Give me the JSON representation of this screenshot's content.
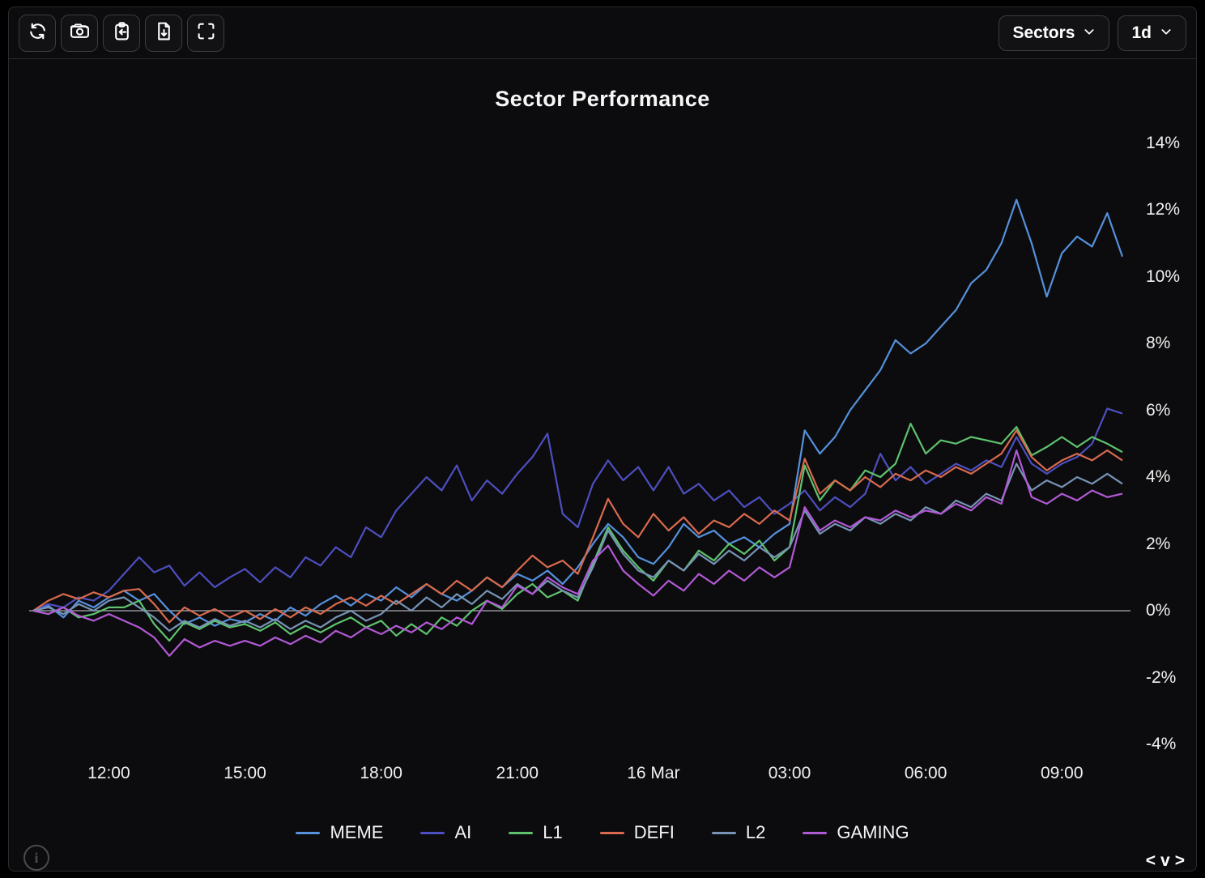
{
  "toolbar": {
    "icons": [
      {
        "name": "refresh-icon"
      },
      {
        "name": "camera-icon"
      },
      {
        "name": "clipboard-import-icon"
      },
      {
        "name": "file-download-icon"
      },
      {
        "name": "fullscreen-icon"
      }
    ],
    "sectors_label": "Sectors",
    "timeframe_label": "1d"
  },
  "footer": {
    "info_icon": "i",
    "nav_left": "<",
    "nav_down": "v",
    "nav_right": ">"
  },
  "chart_data": {
    "type": "line",
    "title": "Sector Performance",
    "xlabel": "",
    "ylabel": "",
    "grid": "zero-line-only",
    "legend_position": "bottom",
    "zero_line_color": "#8f9399",
    "ylim": [
      -4.2,
      14.7
    ],
    "y_ticks": [
      {
        "value": 14,
        "label": "14%"
      },
      {
        "value": 12,
        "label": "12%"
      },
      {
        "value": 10,
        "label": "10%"
      },
      {
        "value": 8,
        "label": "8%"
      },
      {
        "value": 6,
        "label": "6%"
      },
      {
        "value": 4,
        "label": "4%"
      },
      {
        "value": 2,
        "label": "2%"
      },
      {
        "value": 0,
        "label": "0%"
      },
      {
        "value": -2,
        "label": "-2%"
      },
      {
        "value": -4,
        "label": "-4%"
      }
    ],
    "x_ticks": [
      {
        "i": 5,
        "label": "12:00"
      },
      {
        "i": 14,
        "label": "15:00"
      },
      {
        "i": 23,
        "label": "18:00"
      },
      {
        "i": 32,
        "label": "21:00"
      },
      {
        "i": 41,
        "label": "16 Mar"
      },
      {
        "i": 50,
        "label": "03:00"
      },
      {
        "i": 59,
        "label": "06:00"
      },
      {
        "i": 68,
        "label": "09:00"
      }
    ],
    "x_note": "73 points, 20-minute interval, from ~10:20 15 Mar to ~10:20 16 Mar",
    "series": [
      {
        "name": "MEME",
        "color": "#5591dd",
        "values": [
          0,
          0.15,
          -0.2,
          0.3,
          0.1,
          0.4,
          0.6,
          0.3,
          0.5,
          0,
          -0.4,
          -0.2,
          -0.45,
          -0.25,
          -0.35,
          -0.1,
          -0.3,
          0.1,
          -0.15,
          0.2,
          0.45,
          0.15,
          0.5,
          0.3,
          0.7,
          0.4,
          0.8,
          0.5,
          0.3,
          0.6,
          1.0,
          0.7,
          1.1,
          0.9,
          1.2,
          0.8,
          1.3,
          2.0,
          2.6,
          2.2,
          1.6,
          1.4,
          1.9,
          2.6,
          2.2,
          2.4,
          2.0,
          2.2,
          1.9,
          2.3,
          2.6,
          5.4,
          4.7,
          5.2,
          6.0,
          6.6,
          7.2,
          8.1,
          7.7,
          8.0,
          8.5,
          9.0,
          9.8,
          10.2,
          11.0,
          12.3,
          11.0,
          9.4,
          10.7,
          11.2,
          10.9,
          11.9,
          10.6
        ]
      },
      {
        "name": "AI",
        "color": "#4d4fc0",
        "values": [
          0,
          0.2,
          0.1,
          0.4,
          0.3,
          0.6,
          1.1,
          1.6,
          1.15,
          1.35,
          0.75,
          1.15,
          0.7,
          1.0,
          1.25,
          0.85,
          1.3,
          1.0,
          1.6,
          1.35,
          1.9,
          1.6,
          2.5,
          2.2,
          3.0,
          3.5,
          4.0,
          3.6,
          4.35,
          3.3,
          3.9,
          3.5,
          4.1,
          4.6,
          5.3,
          2.9,
          2.5,
          3.8,
          4.5,
          3.9,
          4.3,
          3.6,
          4.3,
          3.5,
          3.8,
          3.3,
          3.6,
          3.1,
          3.4,
          2.9,
          3.2,
          3.6,
          3.0,
          3.4,
          3.1,
          3.5,
          4.7,
          3.9,
          4.3,
          3.8,
          4.1,
          4.4,
          4.2,
          4.5,
          4.3,
          5.2,
          4.4,
          4.1,
          4.4,
          4.6,
          5.0,
          6.05,
          5.9
        ]
      },
      {
        "name": "L1",
        "color": "#5ec26d",
        "values": [
          0,
          -0.1,
          0.1,
          -0.2,
          -0.1,
          0.1,
          0.1,
          0.3,
          -0.4,
          -0.9,
          -0.35,
          -0.55,
          -0.3,
          -0.5,
          -0.4,
          -0.6,
          -0.35,
          -0.7,
          -0.45,
          -0.65,
          -0.4,
          -0.2,
          -0.5,
          -0.3,
          -0.75,
          -0.4,
          -0.7,
          -0.2,
          -0.45,
          0,
          0.3,
          0.05,
          0.5,
          0.8,
          0.4,
          0.6,
          0.3,
          1.4,
          2.5,
          1.8,
          1.3,
          0.9,
          1.5,
          1.2,
          1.8,
          1.5,
          2.0,
          1.7,
          2.1,
          1.5,
          1.9,
          4.35,
          3.3,
          3.9,
          3.6,
          4.2,
          4.0,
          4.4,
          5.6,
          4.7,
          5.1,
          5.0,
          5.2,
          5.1,
          5.0,
          5.5,
          4.65,
          4.9,
          5.2,
          4.9,
          5.2,
          5.0,
          4.75
        ]
      },
      {
        "name": "DEFI",
        "color": "#d96a4d",
        "values": [
          0,
          0.3,
          0.5,
          0.35,
          0.55,
          0.4,
          0.6,
          0.65,
          0.2,
          -0.35,
          0.1,
          -0.15,
          0.05,
          -0.2,
          0,
          -0.25,
          0.05,
          -0.2,
          0.1,
          -0.1,
          0.2,
          0.4,
          0.15,
          0.45,
          0.2,
          0.5,
          0.8,
          0.5,
          0.9,
          0.6,
          1.0,
          0.7,
          1.2,
          1.65,
          1.3,
          1.5,
          1.1,
          2.2,
          3.35,
          2.6,
          2.2,
          2.9,
          2.4,
          2.8,
          2.3,
          2.7,
          2.5,
          2.9,
          2.6,
          3.0,
          2.7,
          4.55,
          3.5,
          3.9,
          3.6,
          4.0,
          3.7,
          4.1,
          3.9,
          4.2,
          4.0,
          4.3,
          4.1,
          4.4,
          4.7,
          5.4,
          4.6,
          4.2,
          4.5,
          4.7,
          4.5,
          4.8,
          4.5
        ]
      },
      {
        "name": "L2",
        "color": "#7793b5",
        "values": [
          0,
          0.1,
          -0.1,
          0.2,
          0,
          0.3,
          0.4,
          0.1,
          -0.2,
          -0.6,
          -0.3,
          -0.5,
          -0.25,
          -0.45,
          -0.3,
          -0.5,
          -0.25,
          -0.55,
          -0.3,
          -0.5,
          -0.2,
          0,
          -0.3,
          -0.1,
          0.3,
          0,
          0.4,
          0.1,
          0.5,
          0.2,
          0.6,
          0.35,
          0.8,
          0.5,
          0.9,
          0.6,
          0.4,
          1.3,
          2.4,
          1.7,
          1.2,
          1.0,
          1.5,
          1.2,
          1.7,
          1.4,
          1.8,
          1.5,
          1.9,
          1.6,
          1.9,
          3.0,
          2.3,
          2.6,
          2.4,
          2.8,
          2.6,
          2.9,
          2.7,
          3.1,
          2.9,
          3.3,
          3.1,
          3.5,
          3.3,
          4.4,
          3.6,
          3.9,
          3.7,
          4.0,
          3.8,
          4.1,
          3.8
        ]
      },
      {
        "name": "GAMING",
        "color": "#b259d6",
        "values": [
          0,
          -0.1,
          0.1,
          -0.15,
          -0.3,
          -0.1,
          -0.3,
          -0.5,
          -0.8,
          -1.35,
          -0.85,
          -1.1,
          -0.9,
          -1.05,
          -0.9,
          -1.05,
          -0.8,
          -1.0,
          -0.75,
          -0.95,
          -0.6,
          -0.8,
          -0.5,
          -0.7,
          -0.45,
          -0.65,
          -0.35,
          -0.55,
          -0.2,
          -0.4,
          0.3,
          0.1,
          0.75,
          0.5,
          1.0,
          0.7,
          0.5,
          1.5,
          1.95,
          1.2,
          0.8,
          0.45,
          0.9,
          0.6,
          1.1,
          0.8,
          1.2,
          0.9,
          1.3,
          1.0,
          1.3,
          3.1,
          2.4,
          2.7,
          2.5,
          2.8,
          2.7,
          3.0,
          2.8,
          3.0,
          2.9,
          3.2,
          3.0,
          3.4,
          3.2,
          4.8,
          3.4,
          3.2,
          3.5,
          3.3,
          3.6,
          3.4,
          3.5
        ]
      }
    ]
  }
}
